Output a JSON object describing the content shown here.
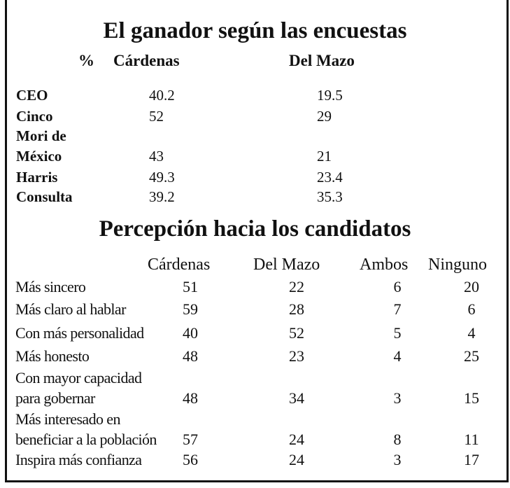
{
  "survey_table": {
    "title": "El ganador según las encuestas",
    "unit": "%",
    "columns": [
      "Cárdenas",
      "Del Mazo"
    ],
    "rows": [
      {
        "label": "CEO",
        "values": [
          "40.2",
          "19.5"
        ]
      },
      {
        "label": "Cinco",
        "values": [
          "52",
          "29"
        ]
      },
      {
        "label": "Mori de",
        "values": [
          "",
          ""
        ]
      },
      {
        "label": "México",
        "values": [
          "43",
          "21"
        ]
      },
      {
        "label": "Harris",
        "values": [
          "49.3",
          "23.4"
        ]
      },
      {
        "label": "Consulta",
        "values": [
          "39.2",
          "35.3"
        ]
      }
    ]
  },
  "perception_table": {
    "title": "Percepción hacia los candidatos",
    "columns": [
      "Cárdenas",
      "Del Mazo",
      "Ambos",
      "Ninguno"
    ],
    "rows": [
      {
        "label": "Más sincero",
        "values": [
          "51",
          "22",
          "6",
          "20"
        ]
      },
      {
        "label": "Más claro al hablar",
        "values": [
          "59",
          "28",
          "7",
          "6"
        ]
      },
      {
        "label": "Con más personalidad",
        "values": [
          "40",
          "52",
          "5",
          "4"
        ]
      },
      {
        "label": "Más honesto",
        "values": [
          "48",
          "23",
          "4",
          "25"
        ]
      },
      {
        "label": "Con mayor capacidad",
        "values": [
          "",
          "",
          "",
          ""
        ]
      },
      {
        "label": "para gobernar",
        "values": [
          "48",
          "34",
          "3",
          "15"
        ]
      },
      {
        "label": "Más interesado en",
        "values": [
          "",
          "",
          "",
          ""
        ]
      },
      {
        "label": "beneficiar a la población",
        "values": [
          "57",
          "24",
          "8",
          "11"
        ]
      },
      {
        "label": "Inspira más confianza",
        "values": [
          "56",
          "24",
          "3",
          "17"
        ]
      }
    ]
  }
}
